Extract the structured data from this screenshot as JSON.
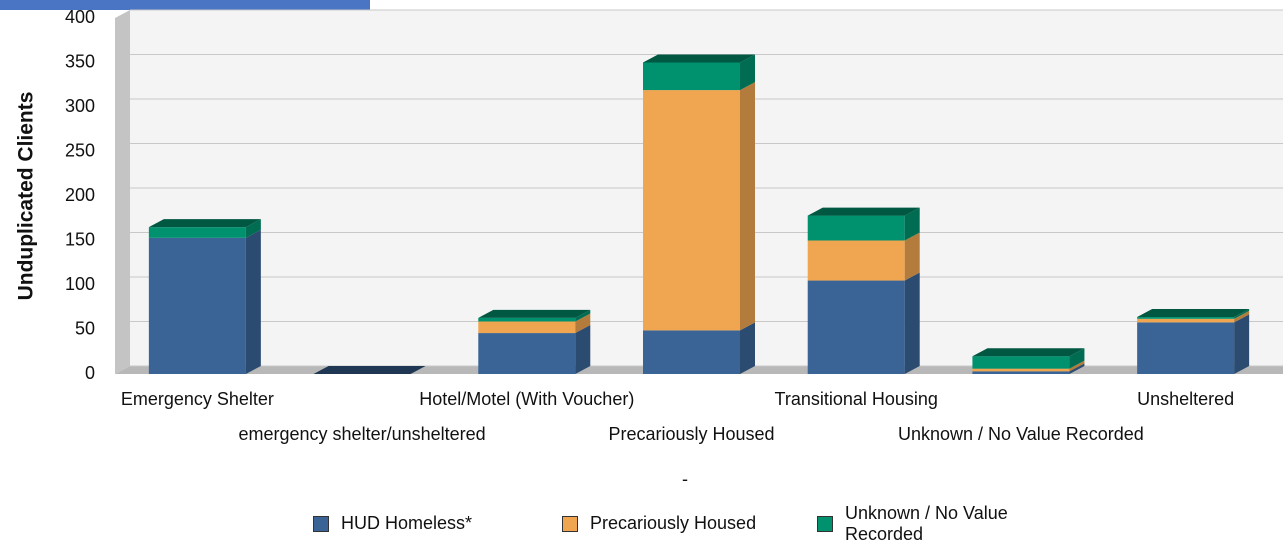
{
  "chart_data": {
    "type": "stacked-bar-3d",
    "y_label": "Unduplicated Clients",
    "x_label": "-",
    "categories": [
      "Emergency Shelter",
      "emergency shelter/unsheltered",
      "Hotel/Motel (With Voucher)",
      "Precariously Housed",
      "Transitional Housing",
      "Unknown / No Value Recorded",
      "Unsheltered"
    ],
    "series": [
      {
        "name": "HUD Homeless*",
        "color": "#3a6496",
        "values": [
          153,
          0,
          46,
          49,
          105,
          3,
          58
        ]
      },
      {
        "name": "Precariously Housed",
        "color": "#f0a550",
        "values": [
          0,
          0,
          13,
          270,
          45,
          3,
          4
        ]
      },
      {
        "name": "Unknown / No Value Recorded",
        "color": "#00916e",
        "values": [
          12,
          0,
          4,
          31,
          28,
          14,
          2
        ]
      }
    ],
    "ylim": [
      0,
      400
    ],
    "yticks": [
      0,
      50,
      100,
      150,
      200,
      250,
      300,
      350,
      400
    ],
    "grid": true
  }
}
